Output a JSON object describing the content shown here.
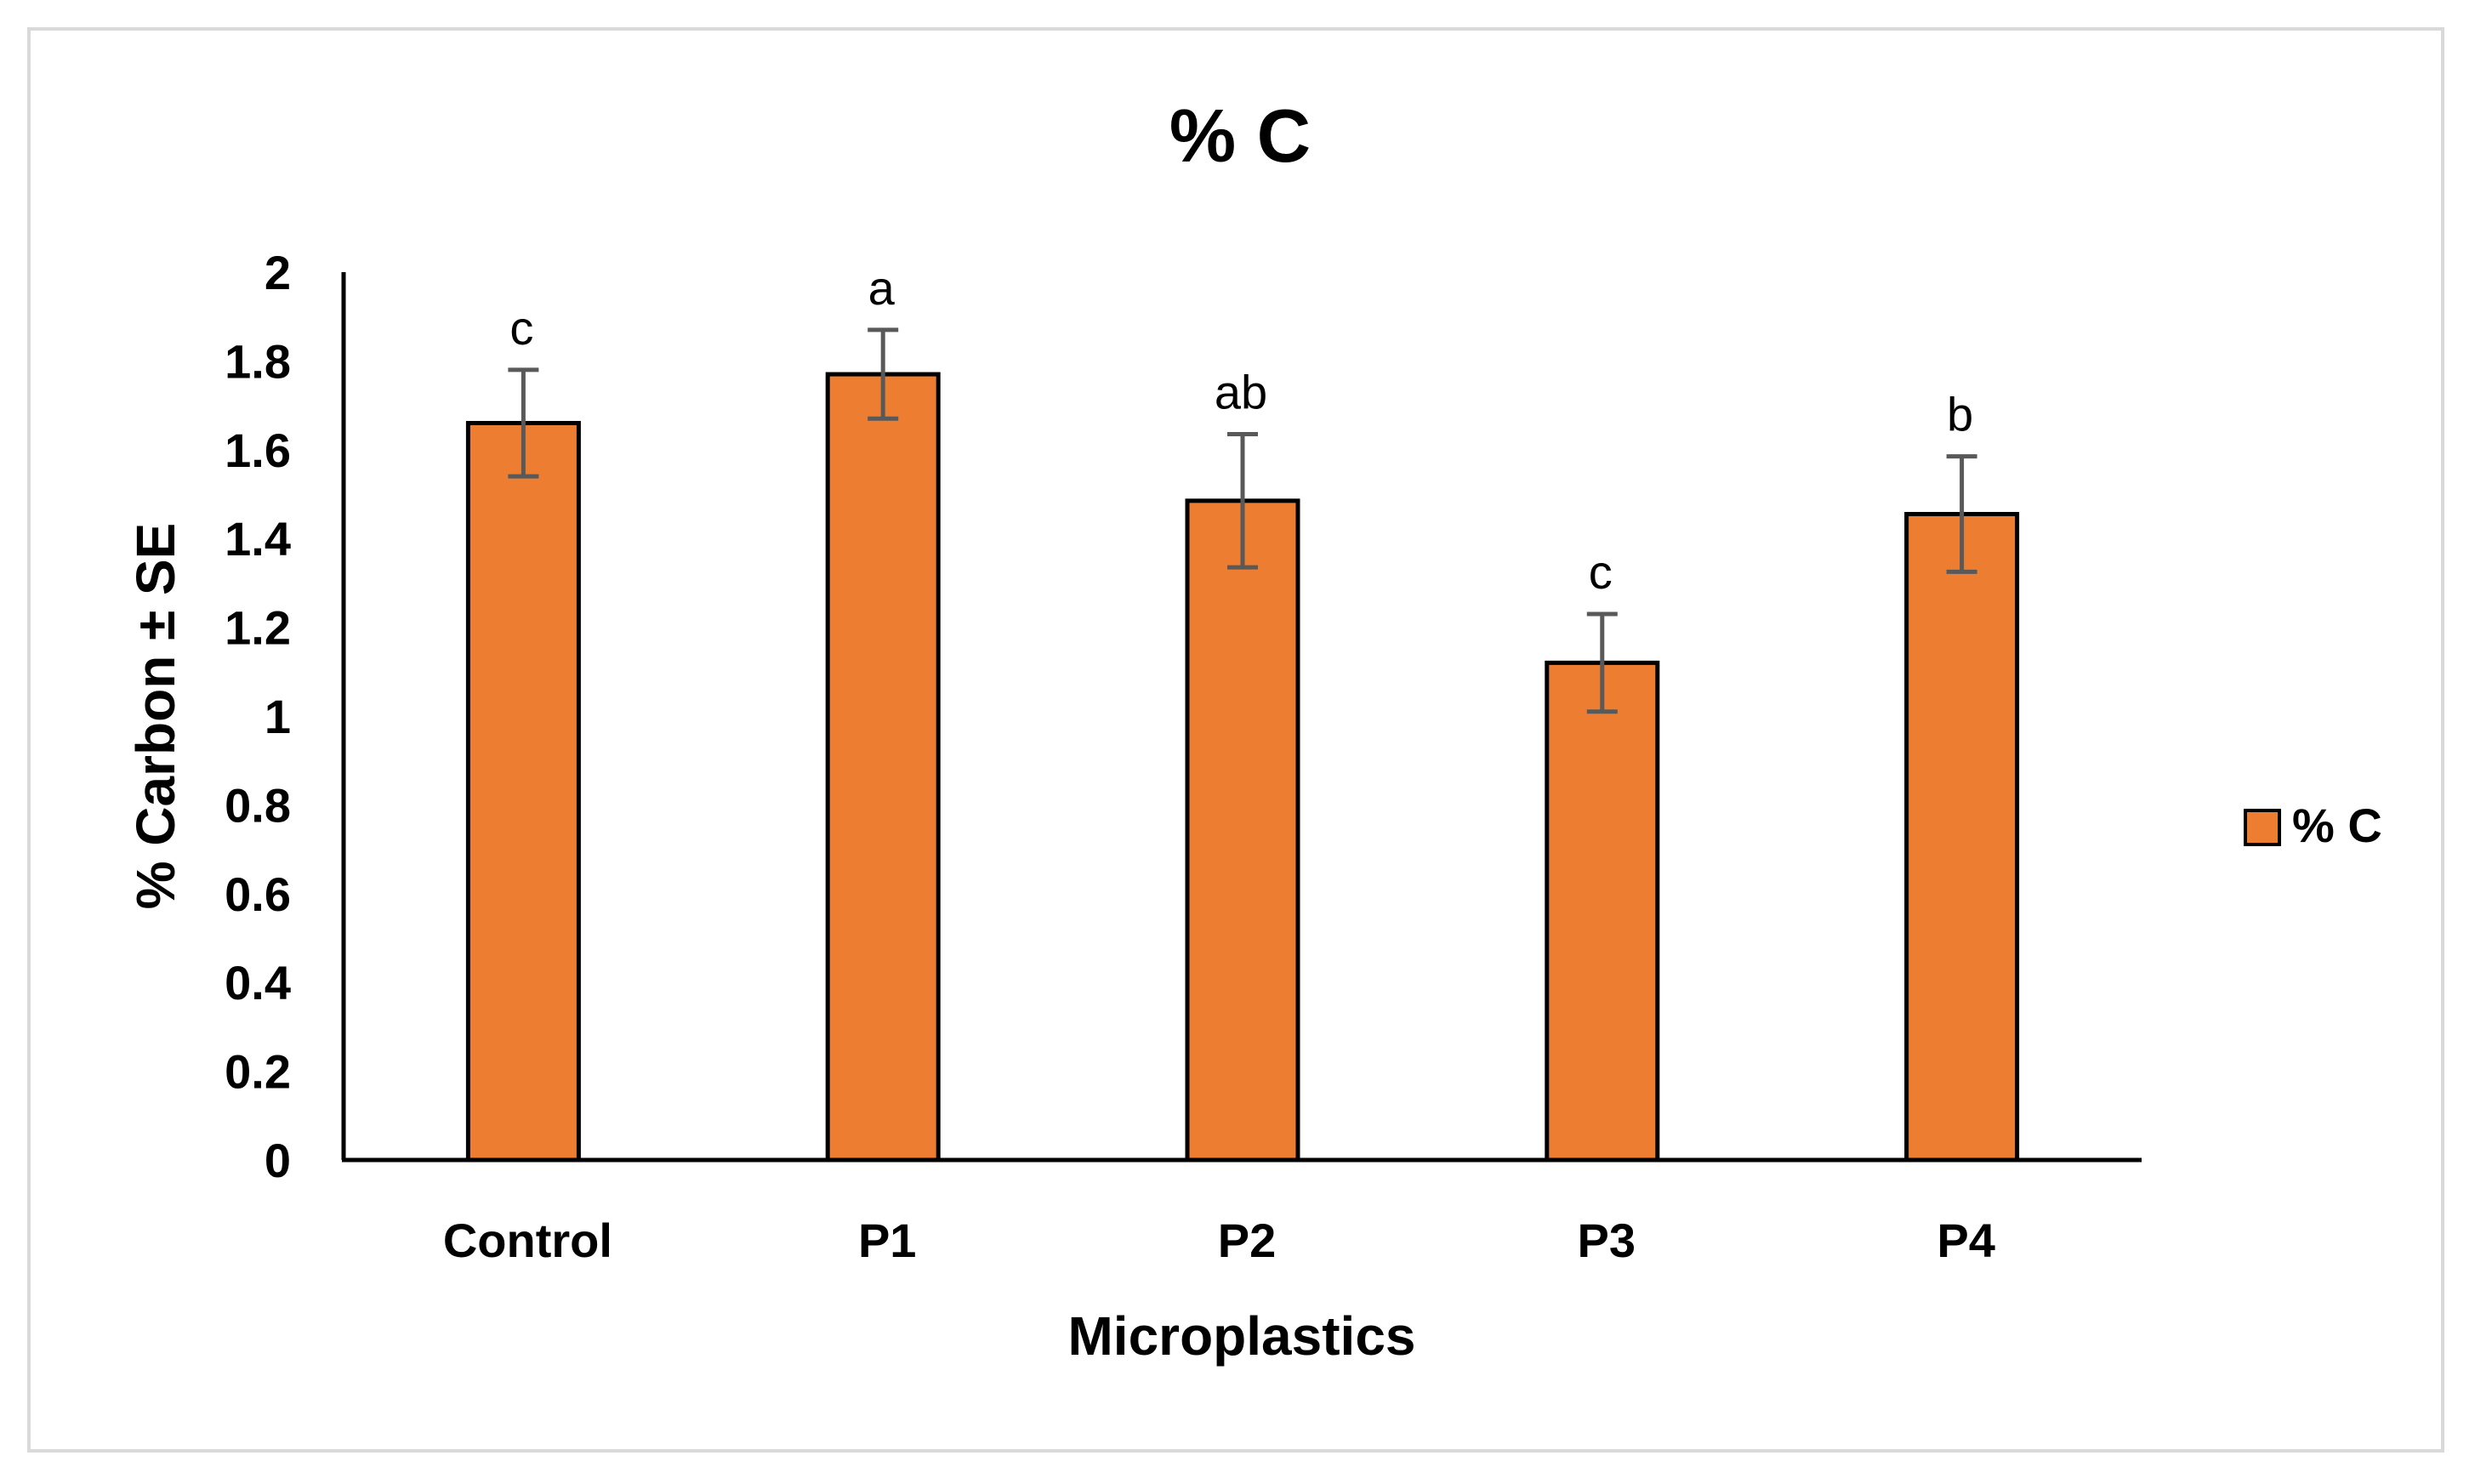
{
  "chart_data": {
    "type": "bar",
    "title": "% C",
    "xlabel": "Microplastics",
    "ylabel": "% Carbon ± SE",
    "ylim": [
      0,
      2
    ],
    "yticks": [
      "0",
      "0.2",
      "0.4",
      "0.6",
      "0.8",
      "1",
      "1.2",
      "1.4",
      "1.6",
      "1.8",
      "2"
    ],
    "categories": [
      "Control",
      "P1",
      "P2",
      "P3",
      "P4"
    ],
    "series": [
      {
        "name": "% C",
        "color": "#ED7D31",
        "values": [
          1.66,
          1.77,
          1.485,
          1.12,
          1.455
        ],
        "errors": [
          0.12,
          0.1,
          0.15,
          0.11,
          0.13
        ],
        "significance": [
          "c",
          "a",
          "ab",
          "c",
          "b"
        ]
      }
    ],
    "legend": {
      "position": "right",
      "label": "% C"
    },
    "grid": false
  }
}
